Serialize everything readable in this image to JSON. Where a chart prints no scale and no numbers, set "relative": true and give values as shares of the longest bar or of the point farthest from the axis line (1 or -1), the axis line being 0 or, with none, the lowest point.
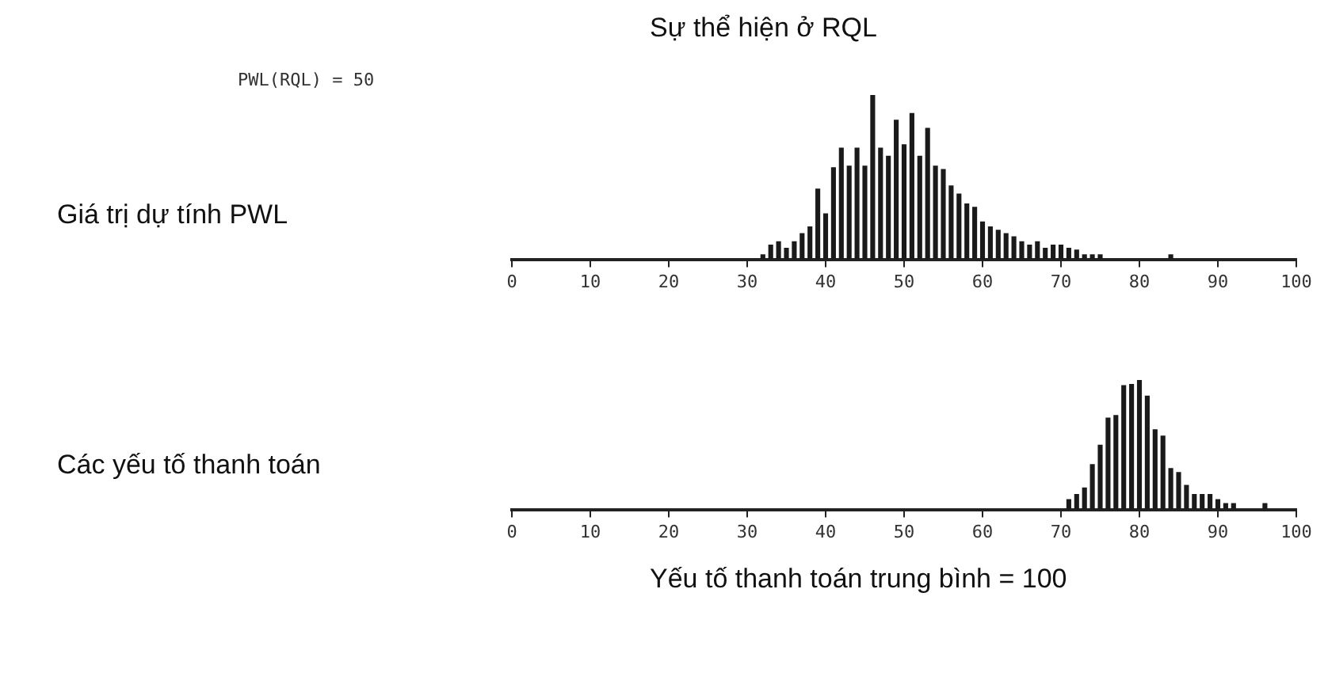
{
  "chart_data": [
    {
      "type": "bar",
      "title": "Sự thể hiện ở RQL",
      "ylabel": "Giá trị dự tính PWL",
      "annotations": [
        "PWL(RQL) = 50"
      ],
      "relative": true,
      "color": "#1a1a1a",
      "x": [
        32,
        33,
        34,
        35,
        36,
        37,
        38,
        39,
        40,
        41,
        42,
        43,
        44,
        45,
        46,
        47,
        48,
        49,
        50,
        51,
        52,
        53,
        54,
        55,
        56,
        57,
        58,
        59,
        60,
        61,
        62,
        63,
        64,
        65,
        66,
        67,
        68,
        69,
        70,
        71,
        72,
        73,
        74,
        75,
        76,
        77,
        78,
        79,
        80,
        81,
        82,
        83,
        84
      ],
      "values": [
        0.03,
        0.09,
        0.11,
        0.07,
        0.11,
        0.16,
        0.2,
        0.43,
        0.28,
        0.56,
        0.68,
        0.57,
        0.68,
        0.57,
        1,
        0.68,
        0.63,
        0.85,
        0.7,
        0.89,
        0.63,
        0.8,
        0.57,
        0.55,
        0.45,
        0.4,
        0.34,
        0.32,
        0.23,
        0.2,
        0.18,
        0.16,
        0.14,
        0.11,
        0.09,
        0.11,
        0.07,
        0.09,
        0.09,
        0.07,
        0.06,
        0.03,
        0.03,
        0.03,
        0,
        0,
        0,
        0,
        0,
        0,
        0,
        0,
        0.03
      ],
      "xlim": [
        0,
        100
      ],
      "xticks": [
        0,
        10,
        20,
        30,
        40,
        50,
        60,
        70,
        80,
        90,
        100
      ],
      "grid": false,
      "legend": false
    },
    {
      "type": "bar",
      "ylabel": "Các yếu tố thanh toán",
      "annotations": [
        "Yếu tố thanh toán trung bình = 100"
      ],
      "relative": true,
      "color": "#1a1a1a",
      "x": [
        71,
        72,
        73,
        74,
        75,
        76,
        77,
        78,
        79,
        80,
        81,
        82,
        83,
        84,
        85,
        86,
        87,
        88,
        89,
        90,
        91,
        92,
        93,
        94,
        95,
        96
      ],
      "values": [
        0.08,
        0.12,
        0.17,
        0.35,
        0.5,
        0.71,
        0.73,
        0.96,
        0.97,
        1,
        0.88,
        0.62,
        0.57,
        0.32,
        0.29,
        0.19,
        0.12,
        0.12,
        0.12,
        0.08,
        0.05,
        0.05,
        0,
        0,
        0,
        0.05
      ],
      "xlim": [
        0,
        100
      ],
      "xticks": [
        0,
        10,
        20,
        30,
        40,
        50,
        60,
        70,
        80,
        90,
        100
      ],
      "grid": false,
      "legend": false
    }
  ]
}
